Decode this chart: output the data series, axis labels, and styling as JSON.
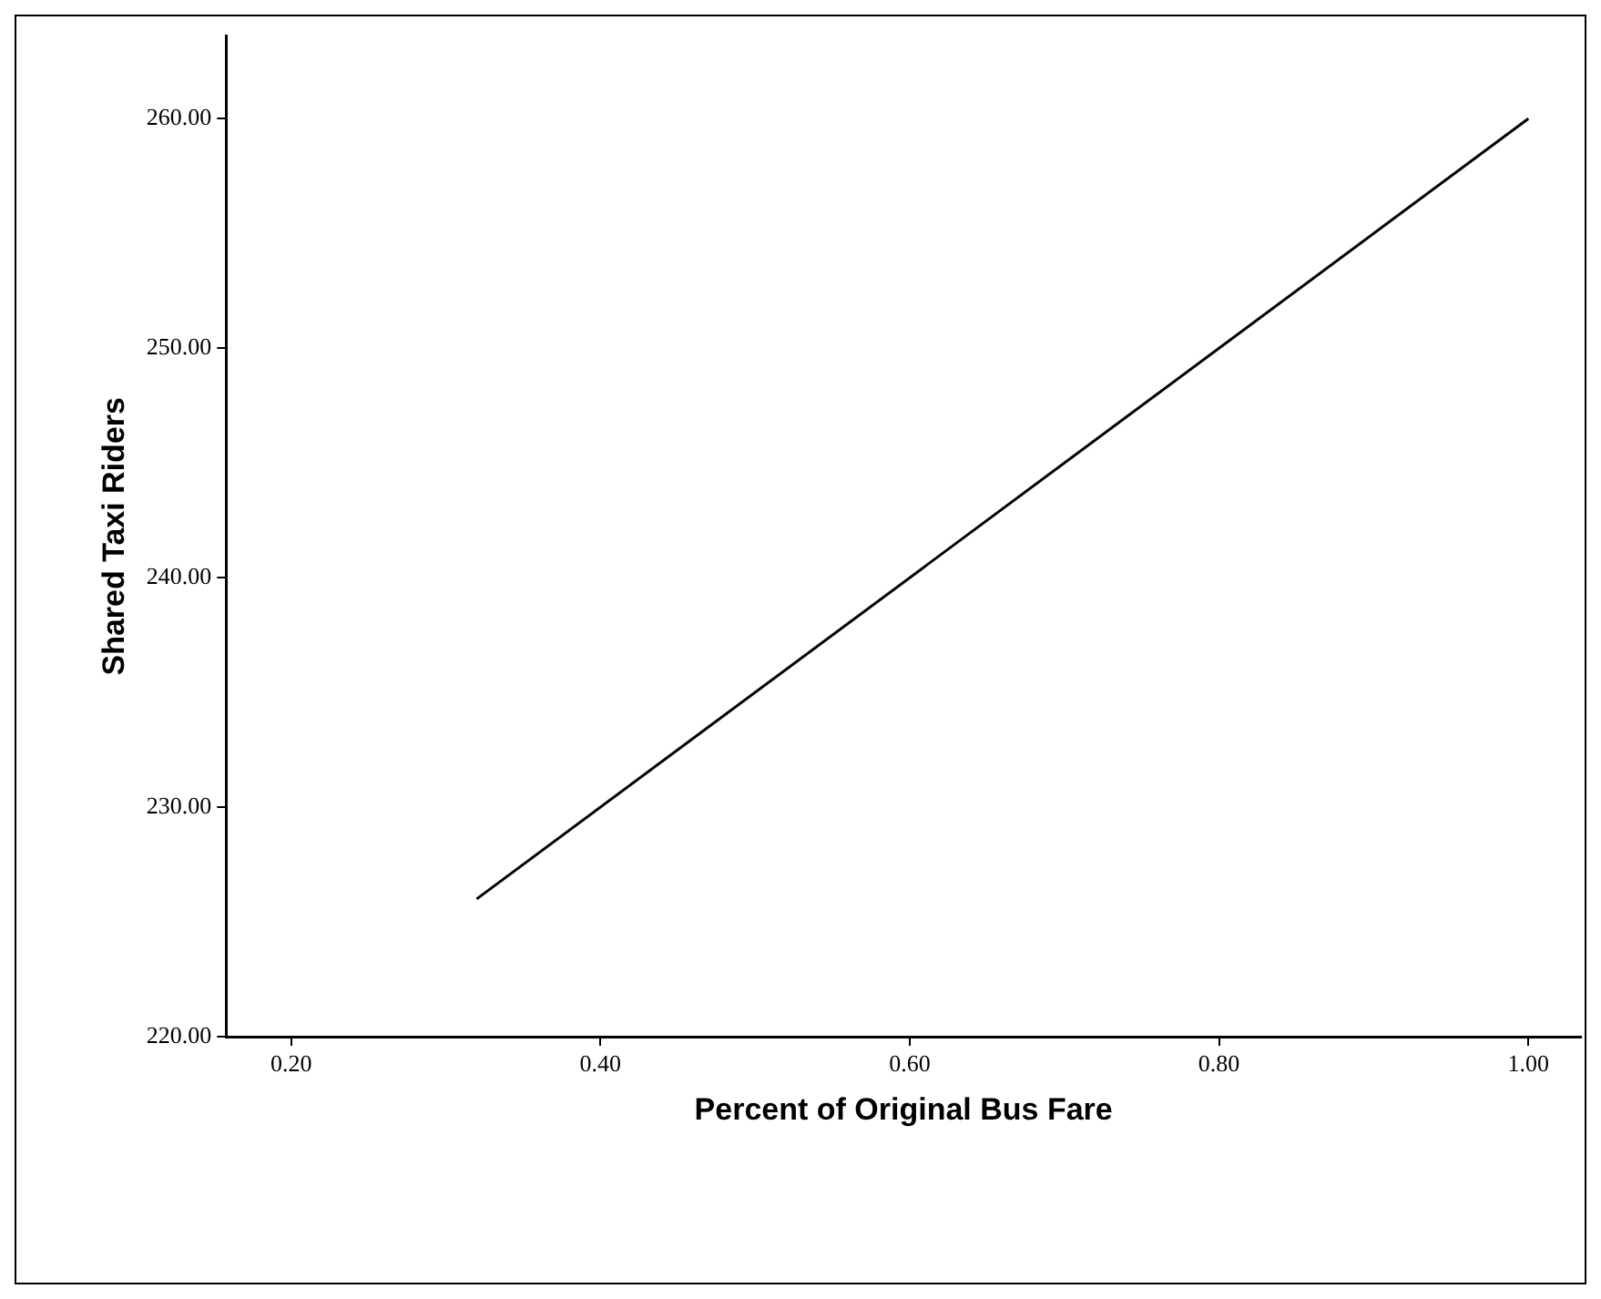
{
  "chart_data": {
    "type": "line",
    "xlabel": "Percent of Original Bus Fare",
    "ylabel": "Shared Taxi Riders",
    "series": [
      {
        "color": "#000000",
        "x": [
          0.32,
          1.0
        ],
        "values": [
          226,
          260
        ]
      }
    ],
    "xlim": [
      0.158,
      1.034
    ],
    "ylim": [
      220,
      263.6
    ],
    "xticks": [
      {
        "value": 0.2,
        "label": "0.20"
      },
      {
        "value": 0.4,
        "label": "0.40"
      },
      {
        "value": 0.6,
        "label": "0.60"
      },
      {
        "value": 0.8,
        "label": "0.80"
      },
      {
        "value": 1.0,
        "label": "1.00"
      }
    ],
    "yticks": [
      {
        "value": 220,
        "label": "220.00"
      },
      {
        "value": 230,
        "label": "230.00"
      },
      {
        "value": 240,
        "label": "240.00"
      },
      {
        "value": 250,
        "label": "250.00"
      },
      {
        "value": 260,
        "label": "260.00"
      }
    ],
    "grid": false,
    "legend": false,
    "marker": "none",
    "line_style": "solid"
  }
}
